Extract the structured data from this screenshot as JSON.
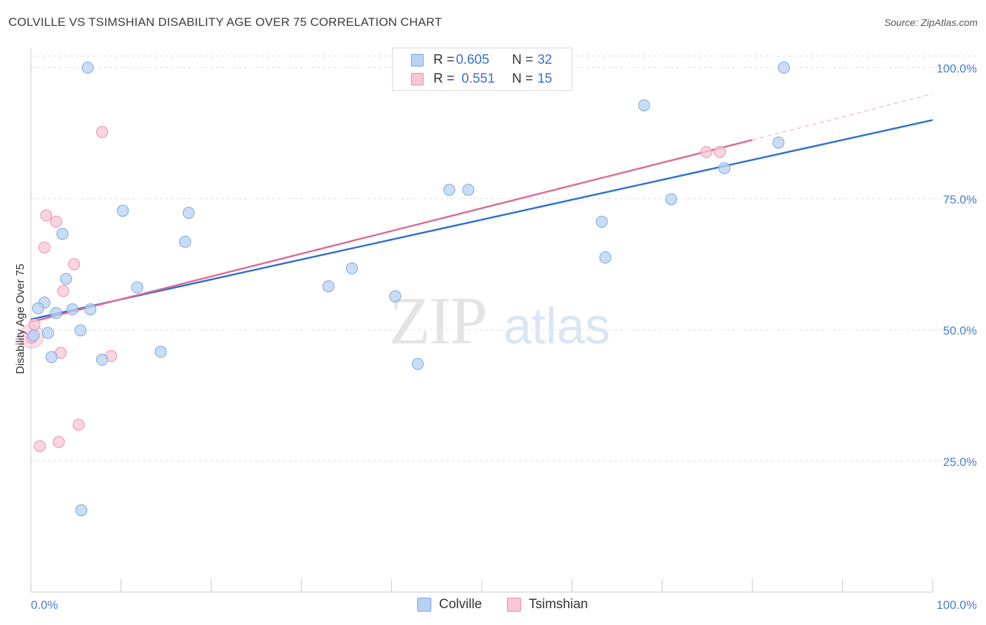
{
  "header": {
    "title": "COLVILLE VS TSIMSHIAN DISABILITY AGE OVER 75 CORRELATION CHART",
    "source": "Source: ZipAtlas.com"
  },
  "watermark": {
    "zip": "ZIP",
    "atlas": "atlas"
  },
  "legend_top": {
    "rows": [
      {
        "r_label": "R = ",
        "r_value": "0.605",
        "n_label": "N = ",
        "n_value": "32"
      },
      {
        "r_label": "R = ",
        "r_value": "0.551",
        "n_label": "N = ",
        "n_value": "15"
      }
    ]
  },
  "legend_bottom": {
    "items": [
      "Colville",
      "Tsimshian"
    ]
  },
  "colors": {
    "blue_fill": "#b7d2f3",
    "blue_stroke": "#7aa6de",
    "blue_line": "#2f6fcf",
    "pink_fill": "#f8c6d5",
    "pink_stroke": "#e991ad",
    "pink_line": "#e06a95",
    "grid": "#dedede",
    "tick_text": "#4a7fd0"
  },
  "chart_data": {
    "type": "scatter",
    "title": "COLVILLE VS TSIMSHIAN DISABILITY AGE OVER 75 CORRELATION CHART",
    "xlabel": "",
    "ylabel": "Disability Age Over 75",
    "xlim": [
      0,
      100
    ],
    "ylim": [
      0,
      103
    ],
    "x_tick_labels": [
      "0.0%",
      "100.0%"
    ],
    "y_ticks": [
      25,
      50,
      75,
      100
    ],
    "y_tick_labels": [
      "25.0%",
      "50.0%",
      "75.0%",
      "100.0%"
    ],
    "grid": true,
    "legend": "top-center",
    "series": [
      {
        "name": "Colville",
        "r": 0.605,
        "n": 32,
        "points": [
          [
            6.3,
            100
          ],
          [
            83.5,
            100
          ],
          [
            68.0,
            92.8
          ],
          [
            82.9,
            85.7
          ],
          [
            76.9,
            80.8
          ],
          [
            46.4,
            76.7
          ],
          [
            48.5,
            76.7
          ],
          [
            71.0,
            74.9
          ],
          [
            10.2,
            72.7
          ],
          [
            17.5,
            72.3
          ],
          [
            63.3,
            70.6
          ],
          [
            3.5,
            68.3
          ],
          [
            17.1,
            66.8
          ],
          [
            63.7,
            63.8
          ],
          [
            35.6,
            61.7
          ],
          [
            3.9,
            59.7
          ],
          [
            11.8,
            58.1
          ],
          [
            33.0,
            58.3
          ],
          [
            40.4,
            56.4
          ],
          [
            1.5,
            55.2
          ],
          [
            0.8,
            54.1
          ],
          [
            4.6,
            53.9
          ],
          [
            6.6,
            53.9
          ],
          [
            2.8,
            53.2
          ],
          [
            5.5,
            49.9
          ],
          [
            1.9,
            49.4
          ],
          [
            0.3,
            48.9
          ],
          [
            14.4,
            45.8
          ],
          [
            2.3,
            44.8
          ],
          [
            7.9,
            44.3
          ],
          [
            42.9,
            43.5
          ],
          [
            5.6,
            15.6
          ]
        ],
        "trend": {
          "x": [
            0,
            100
          ],
          "y": [
            52.0,
            90.0
          ]
        }
      },
      {
        "name": "Tsimshian",
        "r": 0.551,
        "n": 15,
        "points": [
          [
            7.9,
            87.7
          ],
          [
            74.9,
            83.9
          ],
          [
            76.4,
            83.9
          ],
          [
            1.7,
            71.8
          ],
          [
            2.8,
            70.6
          ],
          [
            1.5,
            65.7
          ],
          [
            4.8,
            62.5
          ],
          [
            3.6,
            57.4
          ],
          [
            0.4,
            51.0
          ],
          [
            0.1,
            48.5
          ],
          [
            3.3,
            45.6
          ],
          [
            8.9,
            45.0
          ],
          [
            5.3,
            31.9
          ],
          [
            3.1,
            28.6
          ],
          [
            1.0,
            27.8
          ]
        ],
        "trend": {
          "x": [
            0,
            80
          ],
          "y": [
            51.5,
            86.2
          ]
        },
        "trend_extension": {
          "x": [
            80,
            100
          ],
          "y": [
            86.2,
            95.0
          ]
        }
      }
    ]
  }
}
